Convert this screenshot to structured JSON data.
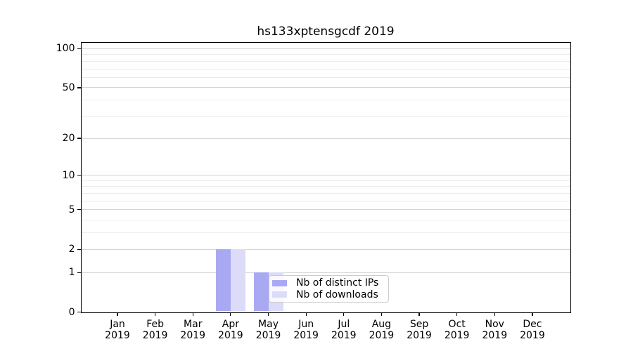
{
  "figure": {
    "background": "#ffffff"
  },
  "chart_data": {
    "type": "bar",
    "title": "hs133xptensgcdf 2019",
    "xlabel": "",
    "ylabel": "",
    "categories": [
      "Jan",
      "Feb",
      "Mar",
      "Apr",
      "May",
      "Jun",
      "Jul",
      "Aug",
      "Sep",
      "Oct",
      "Nov",
      "Dec"
    ],
    "category_year": "2019",
    "series": [
      {
        "name": "Nb of distinct IPs",
        "color": "#a9a9f3",
        "values": [
          0,
          0,
          0,
          2,
          1,
          0,
          0,
          0,
          0,
          0,
          0,
          0
        ]
      },
      {
        "name": "Nb of downloads",
        "color": "#dcdcf9",
        "values": [
          0,
          0,
          0,
          2,
          1,
          0,
          0,
          0,
          0,
          0,
          0,
          0
        ]
      }
    ],
    "yscale": "log1p",
    "ylim": [
      0,
      111
    ],
    "yticks": [
      0,
      1,
      2,
      5,
      10,
      20,
      50,
      100
    ],
    "yticks_minor": [
      3,
      4,
      6,
      7,
      8,
      9,
      30,
      40,
      60,
      70,
      80,
      90
    ],
    "grid": true,
    "legend_position": "lower center",
    "colors": {
      "major_grid": "#d4d4d4",
      "minor_grid": "#ebebeb",
      "spine": "#000000",
      "text": "#000000",
      "legend_border": "#cccccc"
    }
  }
}
